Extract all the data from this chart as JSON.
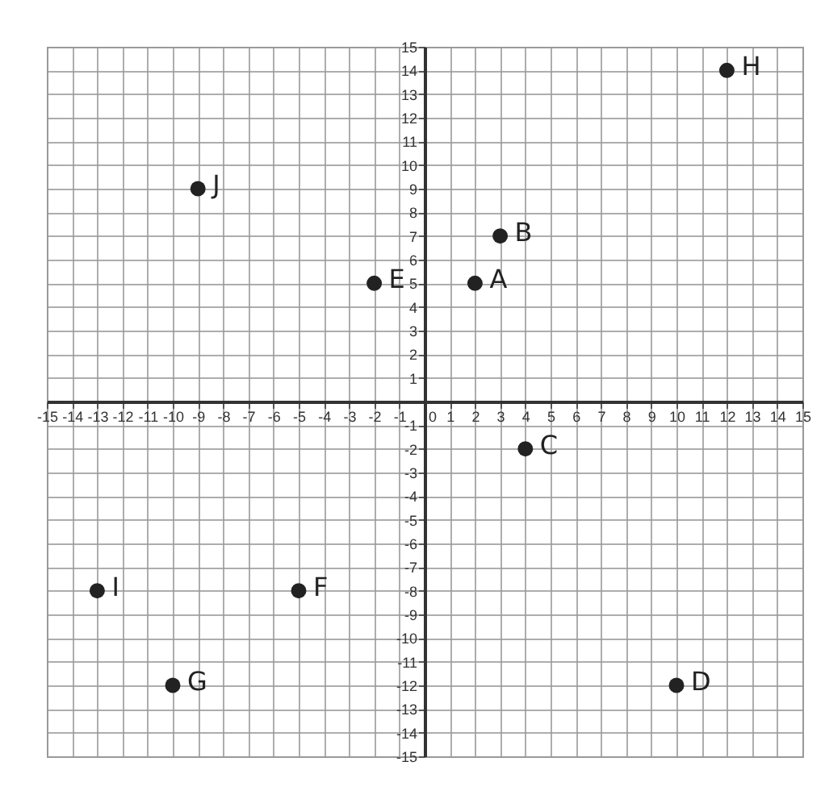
{
  "chart_data": {
    "type": "scatter",
    "x": [
      2,
      3,
      4,
      10,
      -2,
      -5,
      -10,
      12,
      -13,
      -9
    ],
    "series": [
      {
        "color": "#222222",
        "values": [
          5,
          7,
          -2,
          -12,
          5,
          -8,
          -12,
          14,
          -8,
          9
        ]
      }
    ],
    "xlim": [
      -15,
      15
    ],
    "ylim": [
      -15,
      15
    ],
    "xticks": [
      -15,
      -14,
      -13,
      -12,
      -11,
      -10,
      -9,
      -8,
      -7,
      -6,
      -5,
      -4,
      -3,
      -2,
      -1,
      0,
      1,
      2,
      3,
      4,
      5,
      6,
      7,
      8,
      9,
      10,
      11,
      12,
      13,
      14,
      15
    ],
    "yticks": [
      -15,
      -14,
      -13,
      -12,
      -11,
      -10,
      -9,
      -8,
      -7,
      -6,
      -5,
      -4,
      -3,
      -2,
      -1,
      1,
      2,
      3,
      4,
      5,
      6,
      7,
      8,
      9,
      10,
      11,
      12,
      13,
      14,
      15
    ],
    "grid": true,
    "marker": "circle",
    "annotations": [
      {
        "text": "A",
        "x": 2,
        "y": 5
      },
      {
        "text": "B",
        "x": 3,
        "y": 7
      },
      {
        "text": "C",
        "x": 4,
        "y": -2
      },
      {
        "text": "D",
        "x": 10,
        "y": -12
      },
      {
        "text": "E",
        "x": -2,
        "y": 5
      },
      {
        "text": "F",
        "x": -5,
        "y": -8
      },
      {
        "text": "G",
        "x": -10,
        "y": -12
      },
      {
        "text": "H",
        "x": 12,
        "y": 14
      },
      {
        "text": "I",
        "x": -13,
        "y": -8
      },
      {
        "text": "J",
        "x": -9,
        "y": 9
      }
    ]
  }
}
